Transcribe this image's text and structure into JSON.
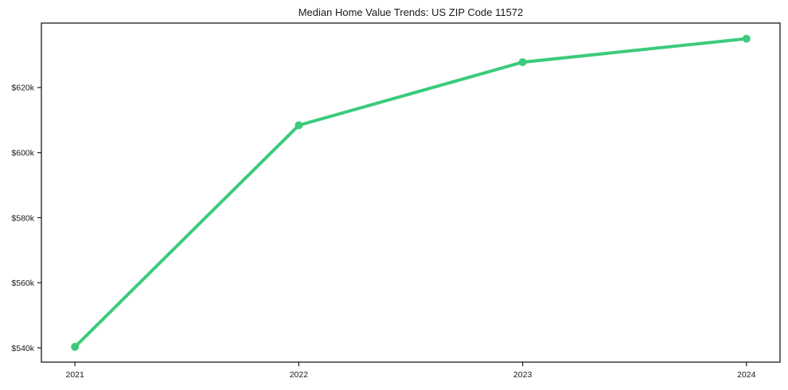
{
  "figure": {
    "title": "Median Home Value Trends: US ZIP Code 11572"
  },
  "chart_data": {
    "type": "line",
    "title": "Median Home Value Trends: US ZIP Code 11572",
    "x": [
      2021,
      2022,
      2023,
      2024
    ],
    "x_tick_labels": [
      "2021",
      "2022",
      "2023",
      "2024"
    ],
    "series": [
      {
        "name": "Median Home Value",
        "values": [
          540300,
          608400,
          627800,
          635000
        ]
      }
    ],
    "y_ticks": [
      540000,
      560000,
      580000,
      600000,
      620000
    ],
    "y_tick_labels": [
      "$540k",
      "$560k",
      "$580k",
      "$600k",
      "$620k"
    ],
    "xlim": [
      2020.85,
      2024.15
    ],
    "ylim": [
      535600,
      639800
    ],
    "xlabel": "",
    "ylabel": "",
    "grid": false,
    "legend": "none",
    "line_color": "#3bcb7c",
    "marker": "circle",
    "marker_radius": 5,
    "line_width": 4,
    "axis_color": "#1a1a1a",
    "text_color": "#1a1a1a",
    "background": "#ffffff"
  }
}
